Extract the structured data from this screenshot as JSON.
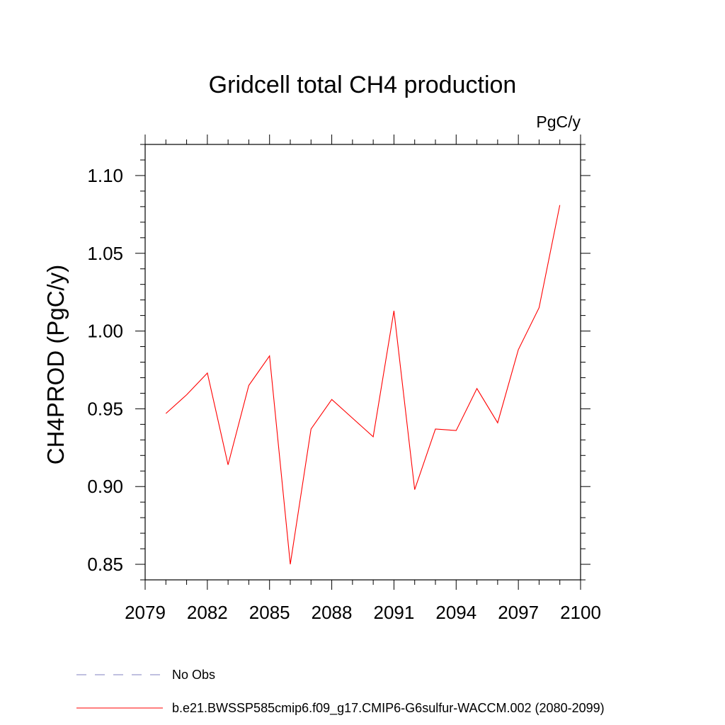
{
  "chart_data": {
    "type": "line",
    "title": "Gridcell total CH4 production",
    "units": "PgC/y",
    "ylabel": "CH4PROD  (PgC/y)",
    "xlabel": "",
    "xlim": [
      2079,
      2100
    ],
    "ylim": [
      0.84,
      1.12
    ],
    "xticks": [
      2079,
      2082,
      2085,
      2088,
      2091,
      2094,
      2097,
      2100
    ],
    "yticks": [
      0.85,
      0.9,
      0.95,
      1.0,
      1.05,
      1.1
    ],
    "ytick_labels": [
      "0.85",
      "0.90",
      "0.95",
      "1.00",
      "1.05",
      "1.10"
    ],
    "grid": false,
    "legend_position": "bottom",
    "x": [
      2080,
      2081,
      2082,
      2083,
      2084,
      2085,
      2086,
      2087,
      2088,
      2089,
      2090,
      2091,
      2092,
      2093,
      2094,
      2095,
      2096,
      2097,
      2098,
      2099
    ],
    "series": [
      {
        "name": "b.e21.BWSSP585cmip6.f09_g17.CMIP6-G6sulfur-WACCM.002 (2080-2099)",
        "color": "#ff0000",
        "style": "solid",
        "values": [
          0.947,
          0.959,
          0.973,
          0.914,
          0.965,
          0.984,
          0.85,
          0.937,
          0.956,
          0.944,
          0.932,
          1.013,
          0.898,
          0.937,
          0.936,
          0.963,
          0.941,
          0.988,
          1.015,
          1.081
        ]
      }
    ],
    "legend": [
      {
        "label": "No Obs",
        "color": "#8080c0",
        "style": "dashed"
      },
      {
        "label": "b.e21.BWSSP585cmip6.f09_g17.CMIP6-G6sulfur-WACCM.002 (2080-2099)",
        "color": "#ff0000",
        "style": "solid"
      }
    ]
  }
}
